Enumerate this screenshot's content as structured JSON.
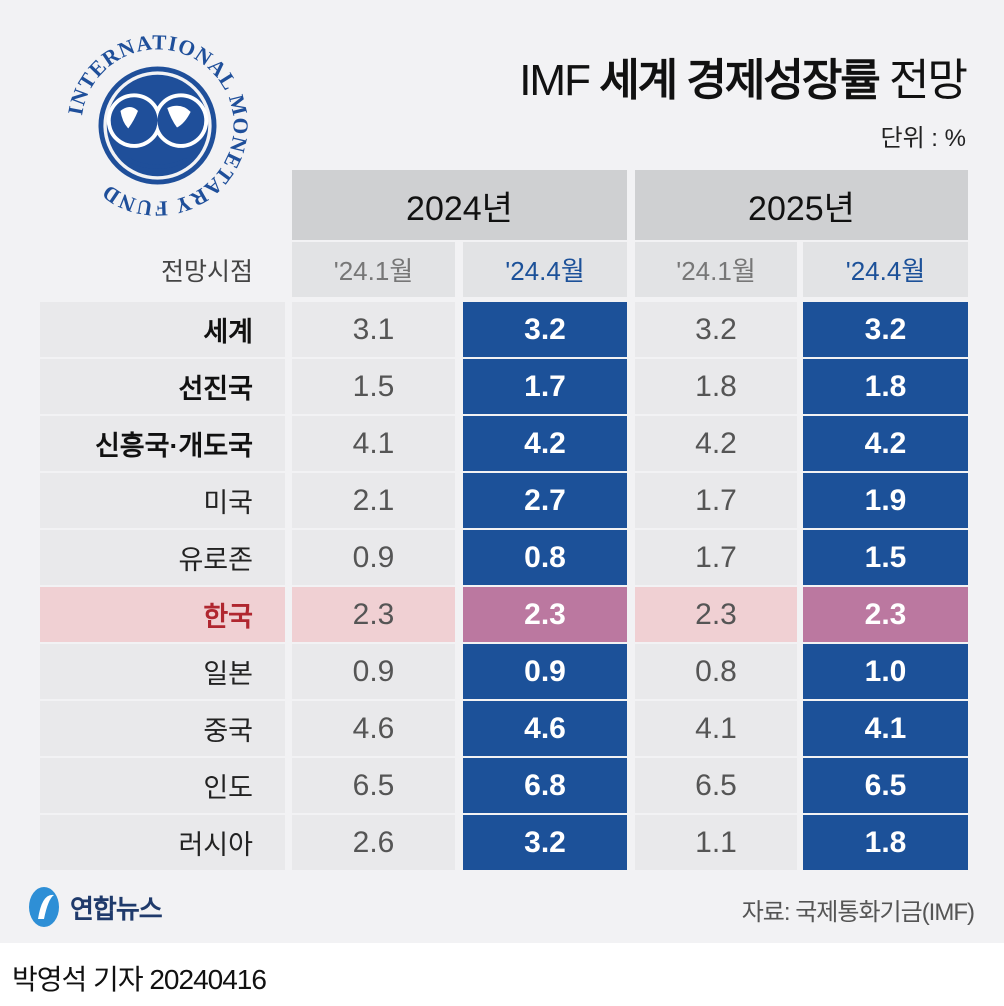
{
  "title": {
    "prefix": "IMF",
    "bold": "세계 경제성장률",
    "suffix": "전망"
  },
  "unit": "단위 : %",
  "logo": {
    "text": "INTERNATIONAL MONETARY FUND"
  },
  "colors": {
    "blue": "#1c5199",
    "korea_highlight": "#f0d0d3",
    "korea_cell": "#bb78a0",
    "korea_label": "#b0262f"
  },
  "chart_data": {
    "type": "table",
    "row_header": "전망시점",
    "groups": [
      {
        "label": "2024년",
        "columns": [
          "'24.1월",
          "'24.4월"
        ]
      },
      {
        "label": "2025년",
        "columns": [
          "'24.1월",
          "'24.4월"
        ]
      }
    ],
    "rows": [
      {
        "label": "세계",
        "bold": true,
        "values": [
          "3.1",
          "3.2",
          "3.2",
          "3.2"
        ]
      },
      {
        "label": "선진국",
        "bold": true,
        "values": [
          "1.5",
          "1.7",
          "1.8",
          "1.8"
        ]
      },
      {
        "label": "신흥국·개도국",
        "bold": true,
        "values": [
          "4.1",
          "4.2",
          "4.2",
          "4.2"
        ]
      },
      {
        "label": "미국",
        "values": [
          "2.1",
          "2.7",
          "1.7",
          "1.9"
        ]
      },
      {
        "label": "유로존",
        "values": [
          "0.9",
          "0.8",
          "1.7",
          "1.5"
        ]
      },
      {
        "label": "한국",
        "highlight": true,
        "values": [
          "2.3",
          "2.3",
          "2.3",
          "2.3"
        ]
      },
      {
        "label": "일본",
        "values": [
          "0.9",
          "0.9",
          "0.8",
          "1.0"
        ]
      },
      {
        "label": "중국",
        "values": [
          "4.6",
          "4.6",
          "4.1",
          "4.1"
        ]
      },
      {
        "label": "인도",
        "values": [
          "6.5",
          "6.8",
          "6.5",
          "6.5"
        ]
      },
      {
        "label": "러시아",
        "values": [
          "2.6",
          "3.2",
          "1.1",
          "1.8"
        ]
      }
    ]
  },
  "footer": {
    "brand": "연합뉴스",
    "source": "자료: 국제통화기금(IMF)",
    "byline": "박영석 기자 20240416"
  }
}
